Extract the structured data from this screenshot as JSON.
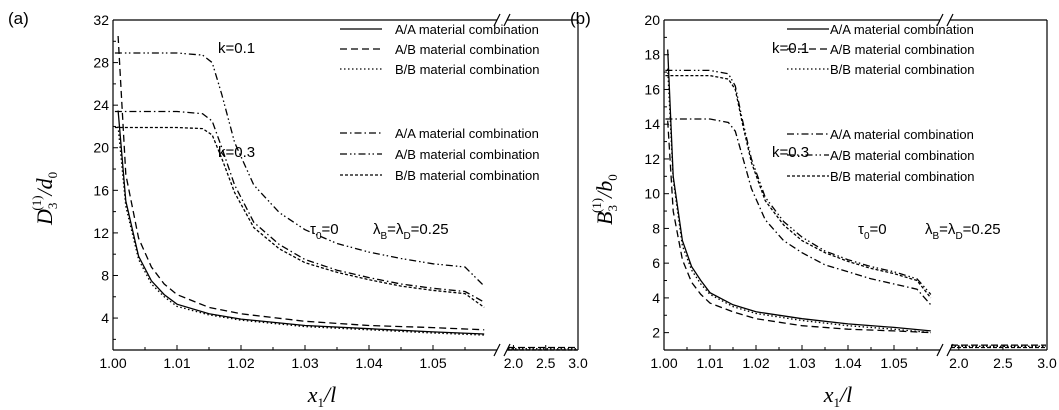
{
  "chart_data": [
    {
      "type": "line",
      "panel_label": "(a)",
      "ylabel": {
        "main": "D",
        "sub": "3",
        "sup": "(1)",
        "tail": "/d",
        "tail_sub": "0"
      },
      "xlabel": {
        "main": "x",
        "sub": "1",
        "tail": "/l"
      },
      "ylim": [
        1,
        32
      ],
      "yticks": [
        "4",
        "8",
        "12",
        "16",
        "20",
        "24",
        "28",
        "32"
      ],
      "xlim_left": [
        1.0,
        1.06
      ],
      "xticks_left": [
        "1.00",
        "1.01",
        "1.02",
        "1.03",
        "1.04",
        "1.05"
      ],
      "xlim_right": [
        1.9,
        3.0
      ],
      "xticks_right": [
        "2.0",
        "2.5",
        "3.0"
      ],
      "annotations": {
        "k1": "k=0.1",
        "k2": "k=0.3",
        "tau": "τ",
        "tau_sub": "0",
        "tau_val": "=0",
        "lambda": "λ",
        "lambda_sub1": "B",
        "lambda_eq": "=λ",
        "lambda_sub2": "D",
        "lambda_val": "=0.25"
      },
      "legend": {
        "group1": [
          "A/A material combination",
          "A/B material combination",
          "B/B material combination"
        ],
        "group2": [
          "A/A material combination",
          "A/B material combination",
          "B/B material combination"
        ]
      },
      "series": [
        {
          "name": "A/A material combination",
          "k": "k=0.1",
          "dash": "solid",
          "x": [
            1.0008,
            1.002,
            1.004,
            1.006,
            1.008,
            1.01,
            1.015,
            1.02,
            1.03,
            1.04,
            1.05,
            1.058
          ],
          "y": [
            23.5,
            15.0,
            9.8,
            7.5,
            6.2,
            5.3,
            4.4,
            3.9,
            3.3,
            3.0,
            2.7,
            2.5
          ]
        },
        {
          "name": "A/B material combination",
          "k": "k=0.1",
          "dash": "dash",
          "x": [
            1.0008,
            1.002,
            1.004,
            1.006,
            1.008,
            1.01,
            1.015,
            1.02,
            1.03,
            1.04,
            1.05,
            1.058
          ],
          "y": [
            30.5,
            17.5,
            11.5,
            8.8,
            7.2,
            6.2,
            5.0,
            4.4,
            3.7,
            3.3,
            3.1,
            2.9
          ]
        },
        {
          "name": "B/B material combination",
          "k": "k=0.1",
          "dash": "dot",
          "x": [
            1.0008,
            1.002,
            1.004,
            1.006,
            1.008,
            1.01,
            1.015,
            1.02,
            1.03,
            1.04,
            1.05,
            1.058
          ],
          "y": [
            22.0,
            14.5,
            9.5,
            7.2,
            6.0,
            5.1,
            4.3,
            3.8,
            3.2,
            2.9,
            2.6,
            2.4
          ]
        },
        {
          "name": "A/A material combination",
          "k": "k=0.3",
          "dash": "dashdot",
          "x": [
            1.0003,
            1.002,
            1.005,
            1.01,
            1.014,
            1.0155,
            1.017,
            1.019,
            1.022,
            1.026,
            1.03,
            1.035,
            1.04,
            1.045,
            1.05,
            1.055,
            1.058
          ],
          "y": [
            23.4,
            23.4,
            23.4,
            23.4,
            23.2,
            22.5,
            20.0,
            16.5,
            13.0,
            10.9,
            9.5,
            8.5,
            7.8,
            7.2,
            6.8,
            6.5,
            5.5
          ]
        },
        {
          "name": "A/B material combination",
          "k": "k=0.3",
          "dash": "dashdotdot",
          "x": [
            1.0003,
            1.002,
            1.005,
            1.01,
            1.014,
            1.0155,
            1.017,
            1.019,
            1.022,
            1.026,
            1.03,
            1.035,
            1.04,
            1.045,
            1.05,
            1.055,
            1.058
          ],
          "y": [
            28.9,
            28.9,
            28.9,
            28.9,
            28.7,
            28.0,
            25.0,
            20.5,
            16.5,
            13.9,
            12.3,
            11.0,
            10.2,
            9.6,
            9.1,
            8.8,
            7.0
          ]
        },
        {
          "name": "B/B material combination",
          "k": "k=0.3",
          "dash": "shortdash",
          "x": [
            1.0003,
            1.002,
            1.005,
            1.01,
            1.014,
            1.0155,
            1.017,
            1.019,
            1.022,
            1.026,
            1.03,
            1.035,
            1.04,
            1.045,
            1.05,
            1.055,
            1.058
          ],
          "y": [
            21.9,
            21.9,
            21.9,
            21.9,
            21.8,
            21.2,
            19.0,
            15.8,
            12.5,
            10.5,
            9.2,
            8.3,
            7.6,
            7.0,
            6.6,
            6.3,
            5.0
          ]
        }
      ],
      "tail_value": 1.1
    },
    {
      "type": "line",
      "panel_label": "(b)",
      "ylabel": {
        "main": "B",
        "sub": "3",
        "sup": "(1)",
        "tail": "/b",
        "tail_sub": "0"
      },
      "xlabel": {
        "main": "x",
        "sub": "1",
        "tail": "/l"
      },
      "ylim": [
        1,
        20
      ],
      "yticks": [
        "2",
        "4",
        "6",
        "8",
        "10",
        "12",
        "14",
        "16",
        "18",
        "20"
      ],
      "xlim_left": [
        1.0,
        1.06
      ],
      "xticks_left": [
        "1.00",
        "1.01",
        "1.02",
        "1.03",
        "1.04",
        "1.05"
      ],
      "xlim_right": [
        1.9,
        3.0
      ],
      "xticks_right": [
        "2.0",
        "2.5",
        "3.0"
      ],
      "annotations": {
        "k1": "k=0.1",
        "k2": "k=0.3",
        "tau": "τ",
        "tau_sub": "0",
        "tau_val": "=0",
        "lambda": "λ",
        "lambda_sub1": "B",
        "lambda_eq": "=λ",
        "lambda_sub2": "D",
        "lambda_val": "=0.25"
      },
      "legend": {
        "group1": [
          "A/A material combination",
          "A/B material combination",
          "B/B material combination"
        ],
        "group2": [
          "A/A material combination",
          "A/B material combination",
          "B/B material combination"
        ]
      },
      "series": [
        {
          "name": "A/A material combination",
          "k": "k=0.1",
          "dash": "solid",
          "x": [
            1.0008,
            1.002,
            1.004,
            1.006,
            1.008,
            1.01,
            1.015,
            1.02,
            1.03,
            1.04,
            1.05,
            1.058
          ],
          "y": [
            18.3,
            11.0,
            7.3,
            5.8,
            5.0,
            4.3,
            3.6,
            3.2,
            2.8,
            2.5,
            2.3,
            2.1
          ]
        },
        {
          "name": "A/B material combination",
          "k": "k=0.1",
          "dash": "dash",
          "x": [
            1.0008,
            1.002,
            1.004,
            1.006,
            1.008,
            1.01,
            1.015,
            1.02,
            1.03,
            1.04,
            1.05,
            1.058
          ],
          "y": [
            14.2,
            9.0,
            6.2,
            4.9,
            4.2,
            3.7,
            3.2,
            2.8,
            2.4,
            2.2,
            2.1,
            2.0
          ]
        },
        {
          "name": "B/B material combination",
          "k": "k=0.1",
          "dash": "dot",
          "x": [
            1.0008,
            1.002,
            1.004,
            1.006,
            1.008,
            1.01,
            1.015,
            1.02,
            1.03,
            1.04,
            1.05,
            1.058
          ],
          "y": [
            17.2,
            10.8,
            7.0,
            5.6,
            4.8,
            4.2,
            3.5,
            3.1,
            2.7,
            2.4,
            2.2,
            2.0
          ]
        },
        {
          "name": "A/A material combination",
          "k": "k=0.3",
          "dash": "dashdot",
          "x": [
            1.0003,
            1.002,
            1.005,
            1.01,
            1.014,
            1.0155,
            1.017,
            1.019,
            1.022,
            1.026,
            1.03,
            1.035,
            1.04,
            1.045,
            1.05,
            1.055,
            1.058
          ],
          "y": [
            14.3,
            14.3,
            14.3,
            14.3,
            14.1,
            13.6,
            12.2,
            10.3,
            8.5,
            7.3,
            6.6,
            5.9,
            5.5,
            5.1,
            4.8,
            4.5,
            3.6
          ]
        },
        {
          "name": "A/B material combination",
          "k": "k=0.3",
          "dash": "dashdotdot",
          "x": [
            1.0003,
            1.002,
            1.005,
            1.01,
            1.014,
            1.0155,
            1.017,
            1.019,
            1.022,
            1.026,
            1.03,
            1.035,
            1.04,
            1.045,
            1.05,
            1.055,
            1.058
          ],
          "y": [
            17.1,
            17.1,
            17.1,
            17.1,
            16.9,
            16.2,
            14.3,
            12.0,
            9.8,
            8.4,
            7.5,
            6.7,
            6.2,
            5.8,
            5.5,
            5.1,
            4.2
          ]
        },
        {
          "name": "B/B material combination",
          "k": "k=0.3",
          "dash": "shortdash",
          "x": [
            1.0003,
            1.002,
            1.005,
            1.01,
            1.014,
            1.0155,
            1.017,
            1.019,
            1.022,
            1.026,
            1.03,
            1.035,
            1.04,
            1.045,
            1.05,
            1.055,
            1.058
          ],
          "y": [
            16.8,
            16.8,
            16.8,
            16.8,
            16.6,
            16.0,
            14.1,
            11.8,
            9.6,
            8.2,
            7.3,
            6.6,
            6.1,
            5.7,
            5.4,
            5.0,
            4.0
          ]
        }
      ],
      "tail_value": 1.2
    }
  ]
}
